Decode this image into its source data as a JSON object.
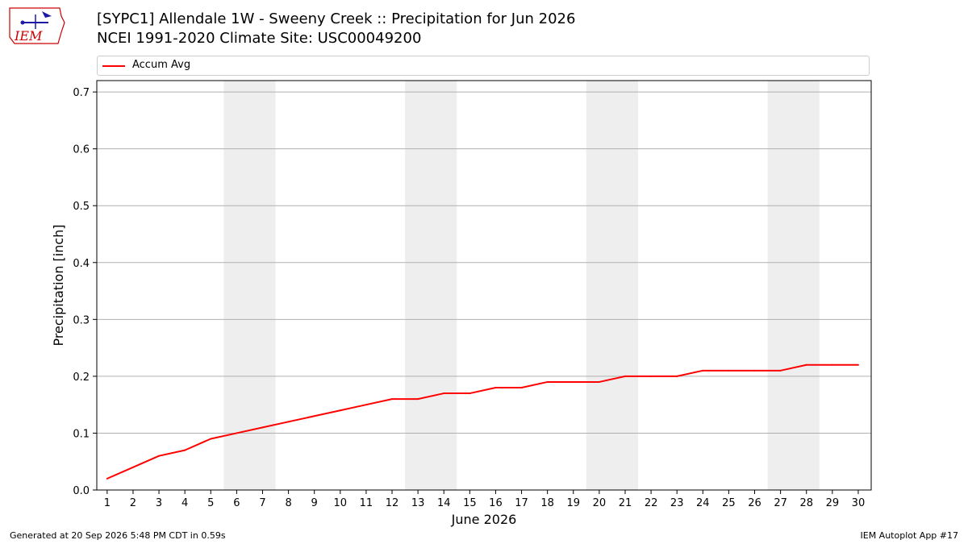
{
  "header": {
    "title_line1": "[SYPC1] Allendale 1W - Sweeny Creek :: Precipitation for Jun 2026",
    "title_line2": "NCEI 1991-2020 Climate Site: USC00049200",
    "logo_text": "IEM"
  },
  "colors": {
    "line": "#ff0000",
    "weekend_band": "#eeeeee",
    "grid": "#b0b0b0",
    "logo": "#cc0000",
    "logo_mark": "#1a1aa6"
  },
  "chart_data": {
    "type": "line",
    "xlabel": "June 2026",
    "ylabel": "Precipitation [inch]",
    "xlim": [
      0.6,
      30.5
    ],
    "ylim": [
      0.0,
      0.72
    ],
    "x": [
      1,
      2,
      3,
      4,
      5,
      6,
      7,
      8,
      9,
      10,
      11,
      12,
      13,
      14,
      15,
      16,
      17,
      18,
      19,
      20,
      21,
      22,
      23,
      24,
      25,
      26,
      27,
      28,
      29,
      30
    ],
    "x_tick_labels": [
      "1",
      "2",
      "3",
      "4",
      "5",
      "6",
      "7",
      "8",
      "9",
      "10",
      "11",
      "12",
      "13",
      "14",
      "15",
      "16",
      "17",
      "18",
      "19",
      "20",
      "21",
      "22",
      "23",
      "24",
      "25",
      "26",
      "27",
      "28",
      "29",
      "30"
    ],
    "y_ticks": [
      0.0,
      0.1,
      0.2,
      0.3,
      0.4,
      0.5,
      0.6,
      0.7
    ],
    "y_tick_labels": [
      "0.0",
      "0.1",
      "0.2",
      "0.3",
      "0.4",
      "0.5",
      "0.6",
      "0.7"
    ],
    "series": [
      {
        "name": "Accum Avg",
        "values": [
          0.02,
          0.04,
          0.06,
          0.07,
          0.09,
          0.1,
          0.11,
          0.12,
          0.13,
          0.14,
          0.15,
          0.16,
          0.16,
          0.17,
          0.17,
          0.18,
          0.18,
          0.19,
          0.19,
          0.19,
          0.2,
          0.2,
          0.2,
          0.21,
          0.21,
          0.21,
          0.21,
          0.22,
          0.22,
          0.22
        ]
      }
    ],
    "weekend_bands": [
      [
        5.5,
        7.5
      ],
      [
        12.5,
        14.5
      ],
      [
        19.5,
        21.5
      ],
      [
        26.5,
        28.5
      ]
    ],
    "grid": "horizontal",
    "legend_position": "top"
  },
  "footer": {
    "generated": "Generated at 20 Sep 2026 5:48 PM CDT in 0.59s",
    "app": "IEM Autoplot App #17"
  }
}
